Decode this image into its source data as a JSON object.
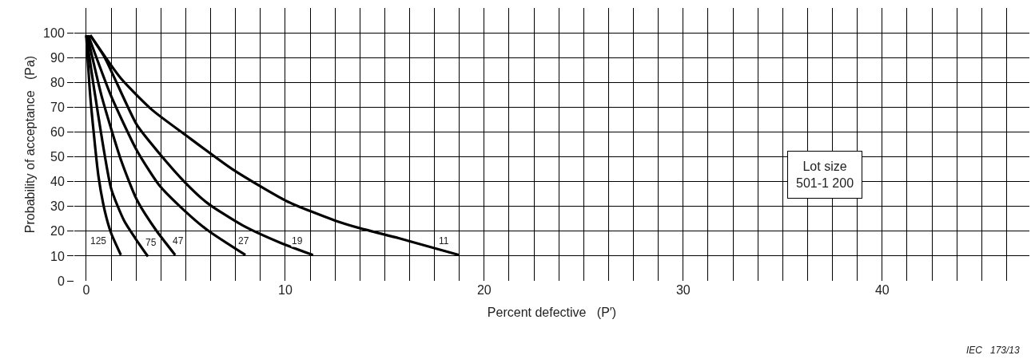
{
  "chart_data": {
    "type": "line",
    "xlabel": "Percent defective   (P′)",
    "ylabel": "Probability of acceptance   (Pa)",
    "annotations": [
      "Lot size\n501-1 200",
      "IEC   173/13"
    ],
    "series": [
      {
        "name": "11",
        "color": "#000000",
        "x": [
          0.2,
          1.74,
          3.34,
          4.95,
          7.36,
          10.1,
          12.5,
          13.8,
          15.7,
          18.75
        ],
        "values": [
          99,
          81.6,
          68.7,
          59,
          44.9,
          32,
          24.3,
          21.1,
          17.2,
          10.4
        ]
      },
      {
        "name": "19",
        "color": "#000000",
        "x": [
          0.2,
          0.93,
          2.54,
          3.67,
          4.95,
          6.08,
          7.85,
          9.77,
          11.4
        ],
        "values": [
          99,
          90,
          62.9,
          51.4,
          39.8,
          31.4,
          22.4,
          15.3,
          10.4
        ]
      },
      {
        "name": "27",
        "color": "#000000",
        "x": [
          0.1,
          1.25,
          2.54,
          3.67,
          4.95,
          6.08,
          8.0
        ],
        "values": [
          99,
          74.5,
          52.6,
          38.5,
          28.2,
          20.5,
          10.4
        ]
      },
      {
        "name": "47",
        "color": "#000000",
        "x": [
          0.05,
          0.77,
          1.74,
          2.54,
          3.5,
          4.47
        ],
        "values": [
          99,
          74.5,
          48.8,
          32.7,
          20.5,
          10.4
        ]
      },
      {
        "name": "75",
        "color": "#000000",
        "x": [
          0.0,
          0.45,
          1.25,
          1.9,
          2.46,
          3.1
        ],
        "values": [
          99,
          74.5,
          37.2,
          24.3,
          17.2,
          9.8
        ]
      },
      {
        "name": "125",
        "color": "#000000",
        "x": [
          0.0,
          0.2,
          0.61,
          0.93,
          1.25,
          1.74
        ],
        "values": [
          99,
          74.5,
          42.3,
          28.2,
          19.2,
          10.4
        ]
      }
    ],
    "xlim": [
      -0.6,
      47.4
    ],
    "xticks": [
      0,
      {
        "value": 1.25,
        "label": null
      },
      {
        "value": 2.5,
        "label": null
      },
      {
        "value": 3.75,
        "label": null
      },
      {
        "value": 5,
        "label": null
      },
      {
        "value": 6.25,
        "label": null
      },
      {
        "value": 7.5,
        "label": null
      },
      {
        "value": 8.75,
        "label": null
      },
      10,
      {
        "value": 11.25,
        "label": null
      },
      {
        "value": 12.5,
        "label": null
      },
      {
        "value": 13.75,
        "label": null
      },
      {
        "value": 15,
        "label": null
      },
      {
        "value": 16.25,
        "label": null
      },
      {
        "value": 17.5,
        "label": null
      },
      {
        "value": 18.75,
        "label": null
      },
      20,
      {
        "value": 21.25,
        "label": null
      },
      {
        "value": 22.5,
        "label": null
      },
      {
        "value": 23.75,
        "label": null
      },
      {
        "value": 25,
        "label": null
      },
      {
        "value": 26.25,
        "label": null
      },
      {
        "value": 27.5,
        "label": null
      },
      {
        "value": 28.75,
        "label": null
      },
      30,
      {
        "value": 31.25,
        "label": null
      },
      {
        "value": 32.5,
        "label": null
      },
      {
        "value": 33.75,
        "label": null
      },
      {
        "value": 35,
        "label": null
      },
      {
        "value": 36.25,
        "label": null
      },
      {
        "value": 37.5,
        "label": null
      },
      {
        "value": 38.75,
        "label": null
      },
      40,
      {
        "value": 41.25,
        "label": null
      },
      {
        "value": 42.5,
        "label": null
      },
      {
        "value": 43.75,
        "label": null
      },
      {
        "value": 45,
        "label": null
      },
      {
        "value": 46.25,
        "label": null
      }
    ],
    "ylim": [
      0,
      110
    ],
    "yticks": [
      0,
      10,
      20,
      30,
      40,
      50,
      60,
      70,
      80,
      90,
      100
    ],
    "grid": true,
    "line_style": "solid"
  }
}
